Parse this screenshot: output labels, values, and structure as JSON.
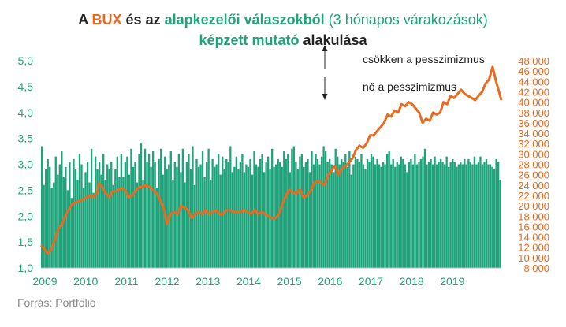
{
  "title": {
    "line1": [
      {
        "text": "A ",
        "style": "dark"
      },
      {
        "text": "BUX",
        "style": "bux"
      },
      {
        "text": " és az ",
        "style": "dark"
      },
      {
        "text": "alapkezelői válaszokból",
        "style": "green"
      },
      {
        "text": " (3 hónapos várakozások)",
        "style": "green-normal"
      }
    ],
    "line2": [
      {
        "text": "képzett mutató",
        "style": "green"
      },
      {
        "text": " alakulása",
        "style": "dark"
      }
    ]
  },
  "source": "Forrás: Portfolio",
  "annotations": {
    "up": "csökken a pesszimizmus",
    "down": "nő a pesszimizmus"
  },
  "colors": {
    "bars": "#1fa37a",
    "line": "#ea6a1f",
    "title_dark": "#222222",
    "source": "#8a8a8a"
  },
  "chart_data": {
    "type": "bar",
    "combo": "bar + line on secondary axis",
    "x_tick_labels": [
      "2009",
      "2010",
      "2011",
      "2012",
      "2013",
      "2014",
      "2015",
      "2016",
      "2017",
      "2018",
      "2019"
    ],
    "x_start_year": 2009,
    "x_end_year": 2020,
    "y_left": {
      "range": [
        1.0,
        5.0
      ],
      "tick_labels": [
        "1,0",
        "1,5",
        "2,0",
        "2,5",
        "3,0",
        "3,5",
        "4,0",
        "4,5",
        "5,0"
      ]
    },
    "y_right": {
      "range": [
        8000,
        48000
      ],
      "tick_labels": [
        "8 000",
        "10 000",
        "12 000",
        "14 000",
        "16 000",
        "18 000",
        "20 000",
        "22 000",
        "24 000",
        "26 000",
        "28 000",
        "30 000",
        "32 000",
        "34 000",
        "36 000",
        "38 000",
        "40 000",
        "42 000",
        "44 000",
        "46 000",
        "48 000"
      ]
    },
    "series": [
      {
        "kind": "bar",
        "axis": "left",
        "values": [
          3.35,
          2.6,
          2.9,
          3.1,
          2.95,
          2.55,
          2.65,
          3.15,
          2.8,
          3.0,
          3.25,
          2.75,
          2.95,
          2.5,
          3.05,
          2.35,
          3.1,
          2.9,
          2.7,
          3.2,
          3.0,
          2.55,
          2.85,
          3.05,
          2.65,
          3.3,
          2.45,
          3.15,
          2.9,
          3.05,
          2.8,
          3.2,
          2.7,
          3.0,
          2.9,
          3.05,
          2.6,
          2.9,
          3.15,
          2.75,
          3.2,
          2.75,
          3.05,
          3.15,
          2.8,
          3.3,
          2.95,
          3.05,
          2.65,
          3.2,
          3.4,
          2.7,
          3.3,
          3.05,
          3.2,
          2.95,
          3.25,
          3.05,
          2.55,
          3.1,
          3.3,
          2.8,
          3.15,
          2.9,
          3.0,
          3.25,
          2.7,
          3.05,
          2.95,
          3.2,
          2.85,
          3.3,
          2.65,
          3.05,
          3.2,
          2.9,
          3.35,
          2.6,
          3.1,
          2.95,
          3.0,
          3.25,
          2.75,
          3.05,
          3.3,
          2.7,
          3.1,
          2.95,
          3.0,
          3.2,
          2.8,
          3.15,
          2.9,
          3.1,
          3.05,
          3.35,
          2.85,
          2.95,
          3.15,
          2.9,
          3.05,
          3.2,
          2.85,
          3.0,
          2.95,
          3.1,
          2.8,
          3.25,
          3.0,
          2.95,
          3.1,
          3.2,
          2.85,
          3.05,
          3.15,
          2.9,
          3.3,
          2.95,
          3.0,
          3.1,
          3.05,
          2.95,
          3.25,
          3.1,
          3.2,
          2.85,
          3.3,
          3.35,
          3.05,
          2.9,
          3.15,
          3.2,
          2.95,
          3.05,
          3.1,
          2.85,
          3.25,
          3.0,
          3.2,
          3.1,
          3.0,
          3.15,
          3.35,
          3.25,
          3.05,
          3.1,
          3.0,
          2.85,
          3.3,
          3.15,
          3.0,
          3.1,
          3.05,
          3.2,
          2.95,
          3.25,
          2.8,
          3.0,
          3.15,
          3.1,
          3.05,
          3.2,
          3.0,
          2.9,
          3.1,
          3.05,
          3.2,
          3.15,
          3.0,
          3.1,
          3.0,
          2.95,
          3.05,
          3.0,
          3.2,
          3.25,
          3.0,
          3.1,
          2.95,
          3.05,
          3.0,
          3.15,
          3.1,
          3.0,
          2.85,
          3.05,
          3.1,
          3.0,
          3.2,
          3.0,
          3.05,
          3.1,
          3.15,
          3.3,
          3.0,
          3.05,
          3.1,
          3.0,
          3.15,
          3.0,
          3.05,
          3.1,
          3.05,
          3.0,
          3.15,
          2.95,
          3.05,
          3.1,
          3.05,
          2.95,
          3.0,
          3.05,
          3.0,
          3.1,
          3.0,
          3.1,
          3.05,
          3.0,
          3.15,
          3.0,
          3.05,
          3.15,
          3.0,
          3.05,
          3.1,
          3.0,
          3.0,
          2.95,
          2.9,
          3.1,
          3.05,
          2.7
        ]
      },
      {
        "kind": "line",
        "axis": "right",
        "points": [
          [
            2009.0,
            12400
          ],
          [
            2009.1,
            11600
          ],
          [
            2009.2,
            10800
          ],
          [
            2009.3,
            11600
          ],
          [
            2009.4,
            13600
          ],
          [
            2009.5,
            15600
          ],
          [
            2009.6,
            16400
          ],
          [
            2009.75,
            18800
          ],
          [
            2009.9,
            20400
          ],
          [
            2010.05,
            20800
          ],
          [
            2010.2,
            21200
          ],
          [
            2010.3,
            21600
          ],
          [
            2010.4,
            22000
          ],
          [
            2010.5,
            21600
          ],
          [
            2010.6,
            22400
          ],
          [
            2010.65,
            24400
          ],
          [
            2010.75,
            23600
          ],
          [
            2010.85,
            22400
          ],
          [
            2010.95,
            21600
          ],
          [
            2011.05,
            22800
          ],
          [
            2011.15,
            22800
          ],
          [
            2011.3,
            23400
          ],
          [
            2011.4,
            23000
          ],
          [
            2011.5,
            21600
          ],
          [
            2011.6,
            22000
          ],
          [
            2011.7,
            22800
          ],
          [
            2011.8,
            23600
          ],
          [
            2011.9,
            23600
          ],
          [
            2012.0,
            24000
          ],
          [
            2012.1,
            23600
          ],
          [
            2012.2,
            23000
          ],
          [
            2012.3,
            22400
          ],
          [
            2012.4,
            21200
          ],
          [
            2012.5,
            19600
          ],
          [
            2012.6,
            16400
          ],
          [
            2012.7,
            18400
          ],
          [
            2012.8,
            18800
          ],
          [
            2012.9,
            18400
          ],
          [
            2013.0,
            20000
          ],
          [
            2013.1,
            19600
          ],
          [
            2013.2,
            19200
          ],
          [
            2013.3,
            17600
          ],
          [
            2013.4,
            18400
          ],
          [
            2013.5,
            18800
          ],
          [
            2013.6,
            18400
          ],
          [
            2013.7,
            19200
          ],
          [
            2013.8,
            18400
          ],
          [
            2013.9,
            18800
          ],
          [
            2014.0,
            19200
          ],
          [
            2014.1,
            18400
          ],
          [
            2014.2,
            18400
          ],
          [
            2014.3,
            19200
          ],
          [
            2014.4,
            19200
          ],
          [
            2014.5,
            18800
          ],
          [
            2014.6,
            18800
          ],
          [
            2014.7,
            18800
          ],
          [
            2014.8,
            19200
          ],
          [
            2014.9,
            18800
          ],
          [
            2015.0,
            18400
          ],
          [
            2015.1,
            19200
          ],
          [
            2015.2,
            18400
          ],
          [
            2015.3,
            18800
          ],
          [
            2015.4,
            18400
          ],
          [
            2015.5,
            18000
          ],
          [
            2015.6,
            17600
          ],
          [
            2015.7,
            17600
          ],
          [
            2015.8,
            18400
          ],
          [
            2015.9,
            20400
          ],
          [
            2016.0,
            22000
          ],
          [
            2016.1,
            23200
          ],
          [
            2016.2,
            22400
          ],
          [
            2016.3,
            22400
          ],
          [
            2016.4,
            23200
          ],
          [
            2016.5,
            21600
          ],
          [
            2016.6,
            22000
          ],
          [
            2016.7,
            22800
          ],
          [
            2016.8,
            24400
          ],
          [
            2016.9,
            24800
          ],
          [
            2017.0,
            24400
          ],
          [
            2017.1,
            24000
          ],
          [
            2017.2,
            26000
          ],
          [
            2017.3,
            26800
          ],
          [
            2017.4,
            27600
          ],
          [
            2017.5,
            26000
          ],
          [
            2017.6,
            27200
          ],
          [
            2017.7,
            27600
          ],
          [
            2017.8,
            28400
          ],
          [
            2017.9,
            29200
          ],
          [
            2018.0,
            30800
          ],
          [
            2018.1,
            31600
          ],
          [
            2018.2,
            31200
          ],
          [
            2018.3,
            32000
          ],
          [
            2018.4,
            33600
          ],
          [
            2018.5,
            33600
          ],
          [
            2018.6,
            34400
          ],
          [
            2018.7,
            35200
          ],
          [
            2018.8,
            36000
          ],
          [
            2018.9,
            37600
          ],
          [
            2019.0,
            37200
          ],
          [
            2019.1,
            38400
          ],
          [
            2019.2,
            38000
          ],
          [
            2019.3,
            39600
          ],
          [
            2019.4,
            39200
          ],
          [
            2019.5,
            40000
          ],
          [
            2019.6,
            39600
          ],
          [
            2019.7,
            38800
          ],
          [
            2019.8,
            38000
          ],
          [
            2019.9,
            36000
          ],
          [
            2020.0,
            36800
          ],
          [
            2020.1,
            36400
          ],
          [
            2020.2,
            38000
          ],
          [
            2020.3,
            37600
          ],
          [
            2020.4,
            38000
          ],
          [
            2020.5,
            40000
          ],
          [
            2020.6,
            39600
          ],
          [
            2020.7,
            41200
          ],
          [
            2020.8,
            40800
          ],
          [
            2020.9,
            41600
          ],
          [
            2021.0,
            42400
          ],
          [
            2021.1,
            41600
          ],
          [
            2021.2,
            41200
          ],
          [
            2021.3,
            40800
          ],
          [
            2021.4,
            40400
          ],
          [
            2021.5,
            41200
          ],
          [
            2021.6,
            42000
          ],
          [
            2021.7,
            43600
          ],
          [
            2021.8,
            44400
          ],
          [
            2021.9,
            46800
          ],
          [
            2022.0,
            44000
          ],
          [
            2022.1,
            41600
          ],
          [
            2022.15,
            40400
          ]
        ]
      }
    ],
    "grid": false,
    "legend": "none"
  }
}
